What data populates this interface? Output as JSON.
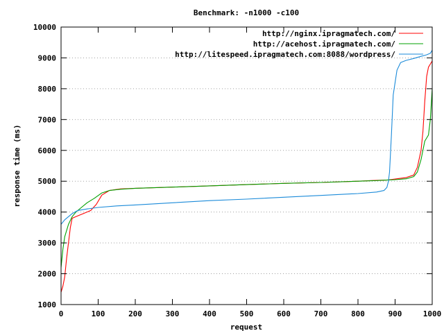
{
  "chart_data": {
    "type": "line",
    "title": "Benchmark: -n1000 -c100",
    "xlabel": "request",
    "ylabel": "response time (ms)",
    "xlim": [
      0,
      1000
    ],
    "ylim": [
      1000,
      10000
    ],
    "xticks": [
      0,
      100,
      200,
      300,
      400,
      500,
      600,
      700,
      800,
      900,
      1000
    ],
    "yticks": [
      1000,
      2000,
      3000,
      4000,
      5000,
      6000,
      7000,
      8000,
      9000,
      10000
    ],
    "grid": "horizontal dotted",
    "legend_position": "top-right",
    "series": [
      {
        "name": "http://nginx.ipragmatech.com/",
        "color": "#ff0000",
        "points": [
          [
            0,
            1400
          ],
          [
            5,
            1600
          ],
          [
            10,
            1900
          ],
          [
            15,
            2500
          ],
          [
            20,
            3000
          ],
          [
            25,
            3500
          ],
          [
            30,
            3800
          ],
          [
            40,
            3850
          ],
          [
            60,
            3950
          ],
          [
            80,
            4050
          ],
          [
            95,
            4250
          ],
          [
            110,
            4550
          ],
          [
            130,
            4700
          ],
          [
            160,
            4750
          ],
          [
            200,
            4770
          ],
          [
            300,
            4810
          ],
          [
            400,
            4850
          ],
          [
            500,
            4890
          ],
          [
            600,
            4930
          ],
          [
            700,
            4960
          ],
          [
            800,
            5000
          ],
          [
            850,
            5030
          ],
          [
            880,
            5040
          ],
          [
            900,
            5070
          ],
          [
            930,
            5120
          ],
          [
            950,
            5200
          ],
          [
            960,
            5450
          ],
          [
            970,
            6000
          ],
          [
            975,
            6600
          ],
          [
            980,
            7600
          ],
          [
            985,
            8400
          ],
          [
            990,
            8700
          ],
          [
            1000,
            8900
          ]
        ]
      },
      {
        "name": "http://acehost.ipragmatech.com/",
        "color": "#00a000",
        "points": [
          [
            0,
            2200
          ],
          [
            5,
            2800
          ],
          [
            10,
            3200
          ],
          [
            20,
            3600
          ],
          [
            30,
            3850
          ],
          [
            40,
            4000
          ],
          [
            55,
            4150
          ],
          [
            70,
            4300
          ],
          [
            90,
            4450
          ],
          [
            110,
            4620
          ],
          [
            130,
            4700
          ],
          [
            160,
            4740
          ],
          [
            200,
            4770
          ],
          [
            300,
            4810
          ],
          [
            400,
            4850
          ],
          [
            500,
            4890
          ],
          [
            600,
            4930
          ],
          [
            700,
            4960
          ],
          [
            800,
            5000
          ],
          [
            850,
            5020
          ],
          [
            880,
            5040
          ],
          [
            900,
            5050
          ],
          [
            930,
            5080
          ],
          [
            950,
            5150
          ],
          [
            960,
            5300
          ],
          [
            970,
            5700
          ],
          [
            980,
            6300
          ],
          [
            990,
            6500
          ],
          [
            995,
            7000
          ],
          [
            1000,
            8000
          ]
        ]
      },
      {
        "name": "http://litespeed.ipragmatech.com:8088/wordpress/",
        "color": "#1a8ad9",
        "points": [
          [
            0,
            3600
          ],
          [
            10,
            3750
          ],
          [
            20,
            3850
          ],
          [
            30,
            3950
          ],
          [
            45,
            4050
          ],
          [
            70,
            4100
          ],
          [
            100,
            4150
          ],
          [
            150,
            4200
          ],
          [
            200,
            4230
          ],
          [
            300,
            4300
          ],
          [
            400,
            4370
          ],
          [
            500,
            4420
          ],
          [
            600,
            4480
          ],
          [
            700,
            4540
          ],
          [
            800,
            4600
          ],
          [
            850,
            4650
          ],
          [
            870,
            4700
          ],
          [
            878,
            4800
          ],
          [
            882,
            5000
          ],
          [
            885,
            5300
          ],
          [
            890,
            6500
          ],
          [
            895,
            7800
          ],
          [
            900,
            8200
          ],
          [
            905,
            8600
          ],
          [
            915,
            8850
          ],
          [
            930,
            8920
          ],
          [
            950,
            8980
          ],
          [
            970,
            9050
          ],
          [
            985,
            9100
          ],
          [
            995,
            9150
          ],
          [
            1000,
            9250
          ]
        ]
      }
    ]
  }
}
